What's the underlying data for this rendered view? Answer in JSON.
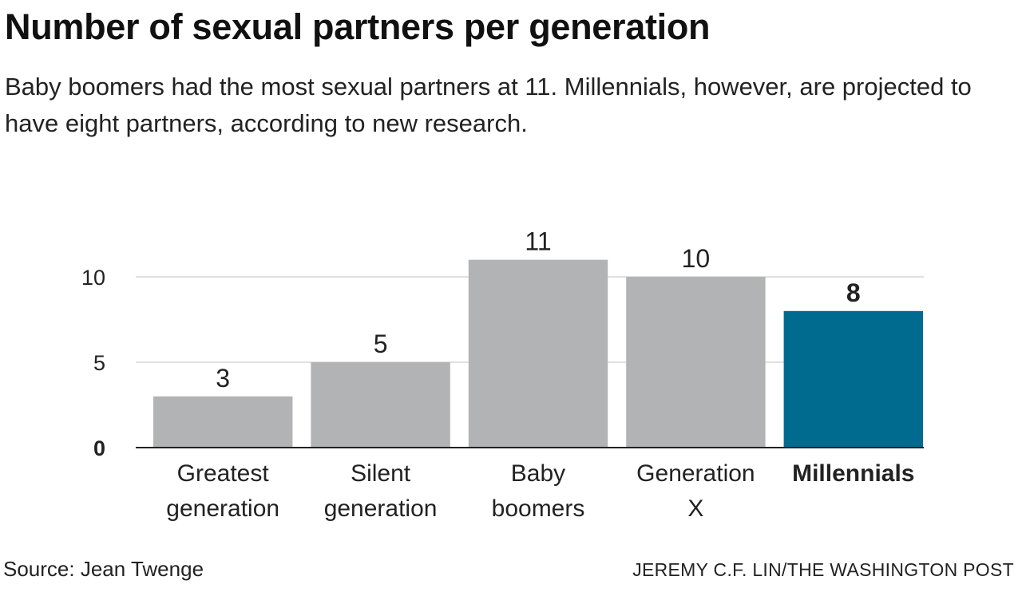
{
  "header": {
    "title": "Number of sexual partners per generation",
    "subtitle": "Baby boomers had the most sexual partners at 11. Millennials, however, are projected to have eight partners, according to new research."
  },
  "footer": {
    "source": "Source: Jean Twenge",
    "credit": "JEREMY C.F. LIN/THE WASHINGTON POST"
  },
  "chart_data": {
    "type": "bar",
    "categories": [
      [
        "Greatest",
        "generation"
      ],
      [
        "Silent",
        "generation"
      ],
      [
        "Baby",
        "boomers"
      ],
      [
        "Generation",
        "X"
      ],
      [
        "Millennials"
      ]
    ],
    "values": [
      3,
      5,
      11,
      10,
      8
    ],
    "value_labels": [
      "3",
      "5",
      "11",
      "10",
      "8"
    ],
    "highlight_index": 4,
    "ylim": [
      0,
      11
    ],
    "yticks": [
      0,
      5,
      10
    ],
    "ytick_labels": [
      "0",
      "5",
      "10"
    ],
    "grid": true,
    "legend": "none",
    "colors": {
      "bar": "#b2b3b5",
      "highlight": "#006b8f",
      "grid": "#d6d6d6",
      "axis": "#222222"
    }
  }
}
